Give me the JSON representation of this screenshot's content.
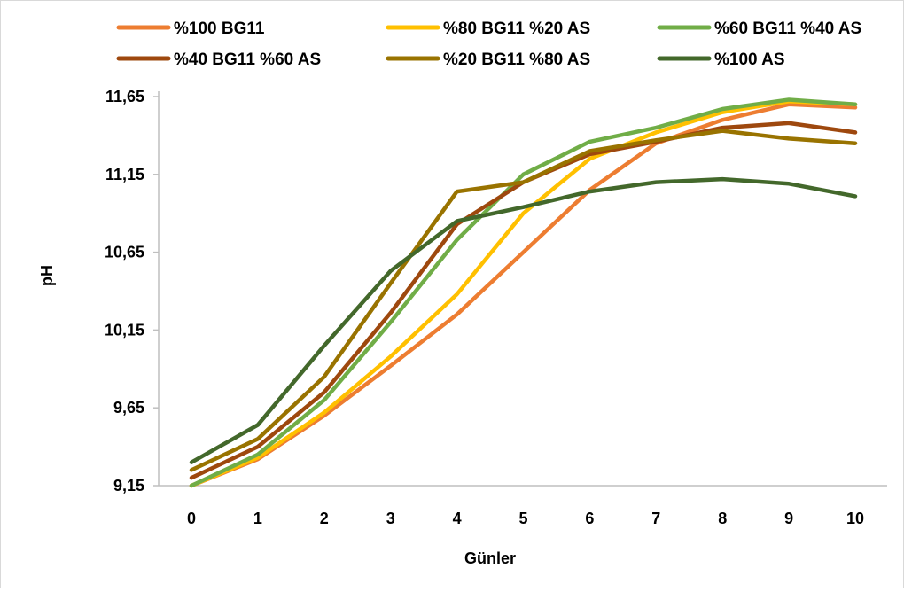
{
  "chart_data": {
    "type": "line",
    "title": "",
    "xlabel": "Günler",
    "ylabel": "pH",
    "x": [
      "0",
      "1",
      "2",
      "3",
      "4",
      "5",
      "6",
      "7",
      "8",
      "9",
      "10"
    ],
    "ylim": [
      9.15,
      11.65
    ],
    "yticks": [
      "9,15",
      "9,65",
      "10,15",
      "10,65",
      "11,15",
      "11,65"
    ],
    "grid": false,
    "legend_position": "top",
    "series": [
      {
        "name": "%100 BG11",
        "color": "#ED7D31",
        "values": [
          9.15,
          9.32,
          9.6,
          9.92,
          10.25,
          10.65,
          11.05,
          11.35,
          11.5,
          11.6,
          11.58
        ]
      },
      {
        "name": "%80 BG11 %20 AS",
        "color": "#FFC000",
        "values": [
          9.15,
          9.33,
          9.62,
          9.98,
          10.38,
          10.9,
          11.25,
          11.42,
          11.55,
          11.62,
          11.6
        ]
      },
      {
        "name": "%60 BG11 %40 AS",
        "color": "#70AD47",
        "values": [
          9.15,
          9.35,
          9.7,
          10.2,
          10.73,
          11.15,
          11.36,
          11.45,
          11.57,
          11.63,
          11.6
        ]
      },
      {
        "name": "%40 BG11 %60 AS",
        "color": "#9E480E",
        "values": [
          9.2,
          9.4,
          9.75,
          10.26,
          10.83,
          11.1,
          11.28,
          11.36,
          11.45,
          11.48,
          11.42
        ]
      },
      {
        "name": "%20 BG11 %80 AS",
        "color": "#997300",
        "values": [
          9.25,
          9.45,
          9.85,
          10.45,
          11.04,
          11.1,
          11.3,
          11.37,
          11.43,
          11.38,
          11.35
        ]
      },
      {
        "name": "%100 AS",
        "color": "#43682B",
        "values": [
          9.3,
          9.54,
          10.05,
          10.53,
          10.85,
          10.94,
          11.04,
          11.1,
          11.12,
          11.09,
          11.01
        ]
      }
    ]
  }
}
